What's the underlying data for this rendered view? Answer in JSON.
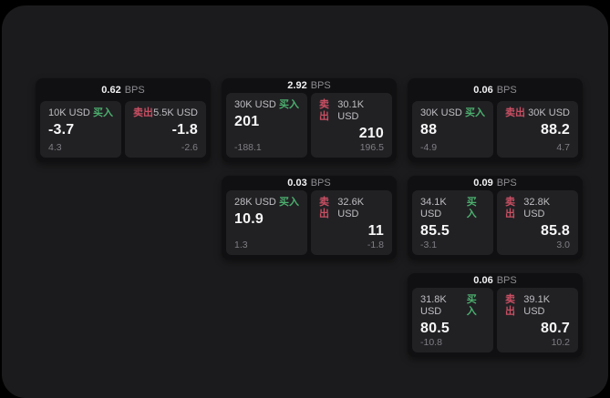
{
  "theme": {
    "page_bg": "#000000",
    "panel_bg": "#1b1b1d",
    "card_bg": "#101012",
    "subcard_bg": "#212124",
    "text_primary": "#f2f2f4",
    "text_secondary": "#bfbfc3",
    "text_muted": "#7f7f84",
    "buy_color": "#4caf6e",
    "sell_color": "#c94f63"
  },
  "labels": {
    "bps_suffix": "BPS",
    "buy": "买入",
    "sell": "卖出"
  },
  "cards": [
    {
      "row": 1,
      "col": 1,
      "bps": "0.62",
      "buy": {
        "size": "10K USD",
        "price": "-3.7",
        "sub": "4.3"
      },
      "sell": {
        "size": "5.5K USD",
        "price": "-1.8",
        "sub": "-2.6"
      }
    },
    {
      "row": 1,
      "col": 2,
      "bps": "2.92",
      "buy": {
        "size": "30K USD",
        "price": "201",
        "sub": "-188.1"
      },
      "sell": {
        "size": "30.1K USD",
        "price": "210",
        "sub": "196.5"
      }
    },
    {
      "row": 1,
      "col": 3,
      "bps": "0.06",
      "buy": {
        "size": "30K USD",
        "price": "88",
        "sub": "-4.9"
      },
      "sell": {
        "size": "30K USD",
        "price": "88.2",
        "sub": "4.7"
      }
    },
    {
      "row": 2,
      "col": 2,
      "bps": "0.03",
      "buy": {
        "size": "28K USD",
        "price": "10.9",
        "sub": "1.3"
      },
      "sell": {
        "size": "32.6K USD",
        "price": "11",
        "sub": "-1.8"
      }
    },
    {
      "row": 2,
      "col": 3,
      "bps": "0.09",
      "buy": {
        "size": "34.1K USD",
        "price": "85.5",
        "sub": "-3.1"
      },
      "sell": {
        "size": "32.8K USD",
        "price": "85.8",
        "sub": "3.0"
      }
    },
    {
      "row": 3,
      "col": 3,
      "bps": "0.06",
      "buy": {
        "size": "31.8K USD",
        "price": "80.5",
        "sub": "-10.8"
      },
      "sell": {
        "size": "39.1K USD",
        "price": "80.7",
        "sub": "10.2"
      }
    }
  ]
}
